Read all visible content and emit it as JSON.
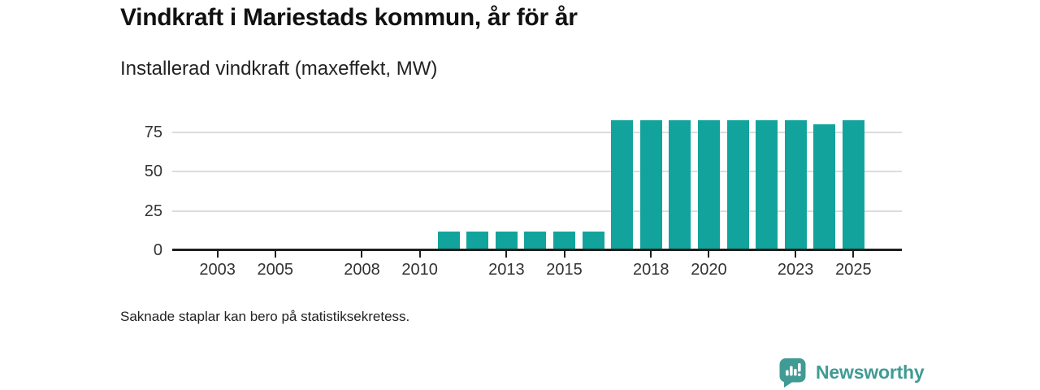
{
  "header": {
    "title": "Vindkraft i Mariestads kommun, år för år",
    "subtitle": "Installerad vindkraft (maxeffekt, MW)"
  },
  "footnote": "Saknade staplar kan bero på statistiksekretess.",
  "branding": {
    "name": "Newsworthy",
    "icon": "bar-chart-speech-bubble-icon",
    "color": "#3f9b94"
  },
  "colors": {
    "bar": "#12a49c",
    "axis": "#1f1f1f",
    "grid": "#dcdcdc",
    "title": "#111111",
    "tick_text": "#333333"
  },
  "chart_data": {
    "type": "bar",
    "title": "Vindkraft i Mariestads kommun, år för år",
    "ylabel": "Installerad vindkraft (maxeffekt, MW)",
    "xlabel": "",
    "categories": [
      2002,
      2003,
      2004,
      2005,
      2006,
      2007,
      2008,
      2009,
      2010,
      2011,
      2012,
      2013,
      2014,
      2015,
      2016,
      2017,
      2018,
      2019,
      2020,
      2021,
      2022,
      2023,
      2024,
      2025
    ],
    "values": [
      null,
      null,
      null,
      null,
      null,
      null,
      null,
      null,
      null,
      12,
      12,
      12,
      12,
      12,
      12,
      83,
      83,
      83,
      83,
      83,
      83,
      83,
      80,
      83
    ],
    "x_tick_labels": [
      "2003",
      "2005",
      "2008",
      "2010",
      "2013",
      "2015",
      "2018",
      "2020",
      "2023",
      "2025"
    ],
    "y_ticks": [
      0,
      25,
      50,
      75
    ],
    "ylim": [
      0,
      87
    ],
    "grid": "horizontal",
    "legend_position": "none",
    "bar_color": "#12a49c"
  }
}
